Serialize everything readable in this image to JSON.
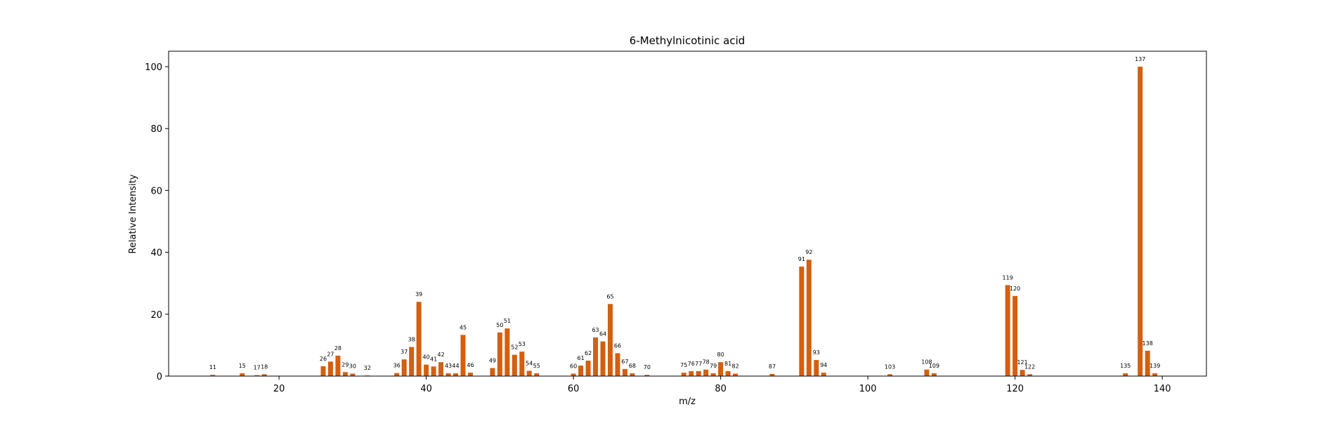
{
  "chart_data": {
    "type": "bar",
    "title": "6-Methylnicotinic acid",
    "xlabel": "m/z",
    "ylabel": "Relative Intensity",
    "xlim": [
      5,
      146
    ],
    "ylim": [
      0,
      105
    ],
    "xticks": [
      20,
      40,
      60,
      80,
      100,
      120,
      140
    ],
    "yticks": [
      0,
      20,
      40,
      60,
      80,
      100
    ],
    "grid": false,
    "bar_color": "#d35f0f",
    "points": [
      {
        "x": 11,
        "y": 0.4
      },
      {
        "x": 15,
        "y": 0.9
      },
      {
        "x": 17,
        "y": 0.3
      },
      {
        "x": 18,
        "y": 0.6
      },
      {
        "x": 26,
        "y": 3.2
      },
      {
        "x": 27,
        "y": 4.7
      },
      {
        "x": 28,
        "y": 6.6
      },
      {
        "x": 29,
        "y": 1.3
      },
      {
        "x": 30,
        "y": 0.8
      },
      {
        "x": 32,
        "y": 0.2
      },
      {
        "x": 36,
        "y": 1.0
      },
      {
        "x": 37,
        "y": 5.4
      },
      {
        "x": 38,
        "y": 9.4
      },
      {
        "x": 39,
        "y": 24.0
      },
      {
        "x": 40,
        "y": 3.7
      },
      {
        "x": 41,
        "y": 3.1
      },
      {
        "x": 42,
        "y": 4.5
      },
      {
        "x": 43,
        "y": 0.9
      },
      {
        "x": 44,
        "y": 0.9
      },
      {
        "x": 45,
        "y": 13.3
      },
      {
        "x": 46,
        "y": 1.1
      },
      {
        "x": 49,
        "y": 2.6
      },
      {
        "x": 50,
        "y": 14.1
      },
      {
        "x": 51,
        "y": 15.4
      },
      {
        "x": 52,
        "y": 6.9
      },
      {
        "x": 53,
        "y": 7.9
      },
      {
        "x": 54,
        "y": 1.7
      },
      {
        "x": 55,
        "y": 0.9
      },
      {
        "x": 60,
        "y": 0.8
      },
      {
        "x": 61,
        "y": 3.4
      },
      {
        "x": 62,
        "y": 5.0
      },
      {
        "x": 63,
        "y": 12.5
      },
      {
        "x": 64,
        "y": 11.2
      },
      {
        "x": 65,
        "y": 23.3
      },
      {
        "x": 66,
        "y": 7.4
      },
      {
        "x": 67,
        "y": 2.3
      },
      {
        "x": 68,
        "y": 0.9
      },
      {
        "x": 70,
        "y": 0.4
      },
      {
        "x": 75,
        "y": 1.1
      },
      {
        "x": 76,
        "y": 1.6
      },
      {
        "x": 77,
        "y": 1.6
      },
      {
        "x": 78,
        "y": 2.1
      },
      {
        "x": 79,
        "y": 0.9
      },
      {
        "x": 80,
        "y": 4.5
      },
      {
        "x": 81,
        "y": 1.6
      },
      {
        "x": 82,
        "y": 0.8
      },
      {
        "x": 87,
        "y": 0.7
      },
      {
        "x": 91,
        "y": 35.4
      },
      {
        "x": 92,
        "y": 37.6
      },
      {
        "x": 93,
        "y": 5.2
      },
      {
        "x": 94,
        "y": 1.1
      },
      {
        "x": 103,
        "y": 0.6
      },
      {
        "x": 108,
        "y": 2.1
      },
      {
        "x": 109,
        "y": 0.9
      },
      {
        "x": 119,
        "y": 29.4
      },
      {
        "x": 120,
        "y": 25.9
      },
      {
        "x": 121,
        "y": 2.0
      },
      {
        "x": 122,
        "y": 0.6
      },
      {
        "x": 135,
        "y": 0.9
      },
      {
        "x": 137,
        "y": 100.0
      },
      {
        "x": 138,
        "y": 8.2
      },
      {
        "x": 139,
        "y": 0.9
      }
    ]
  }
}
